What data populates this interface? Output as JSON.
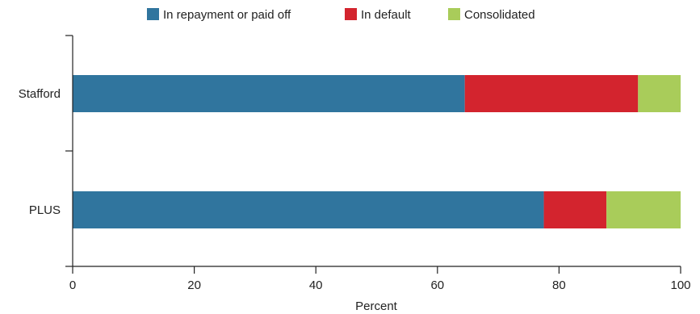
{
  "chart_data": {
    "type": "bar",
    "orientation": "horizontal",
    "stacked": true,
    "categories": [
      "Stafford",
      "PLUS"
    ],
    "series": [
      {
        "name": "In repayment or paid off",
        "color": "#30759e",
        "values": [
          64.5,
          77.5
        ]
      },
      {
        "name": "In default",
        "color": "#d3242e",
        "values": [
          28.5,
          10.3
        ]
      },
      {
        "name": "Consolidated",
        "color": "#a9cc5a",
        "values": [
          7.0,
          12.2
        ]
      }
    ],
    "xlabel": "Percent",
    "ylabel": "",
    "xlim": [
      0,
      100
    ],
    "xticks": [
      "0",
      "20",
      "40",
      "60",
      "80",
      "100"
    ],
    "grid": false,
    "legend_position": "top"
  }
}
